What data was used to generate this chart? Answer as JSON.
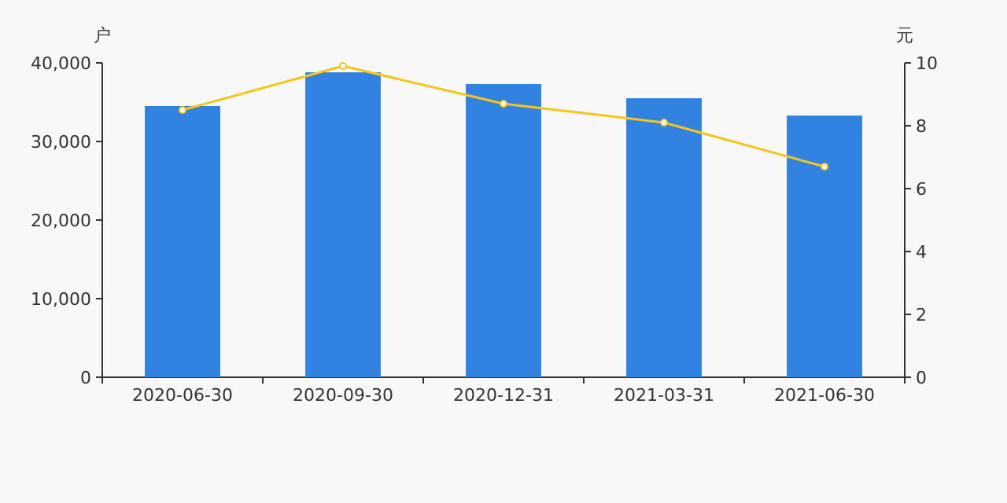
{
  "chart_data": {
    "type": "bar",
    "categories": [
      "2020-06-30",
      "2020-09-30",
      "2020-12-31",
      "2021-03-31",
      "2021-06-30"
    ],
    "ylabel": "户",
    "y2label": "元",
    "ylim": [
      0,
      40000
    ],
    "yticks": [
      0,
      {
        "value": 10000,
        "label": "10,000"
      },
      {
        "value": 20000,
        "label": "20,000"
      },
      {
        "value": 30000,
        "label": "30,000"
      },
      {
        "value": 40000,
        "label": "40,000"
      }
    ],
    "y2lim": [
      0,
      10
    ],
    "y2ticks": [
      0,
      2,
      4,
      6,
      8,
      10
    ],
    "marker": "circle",
    "series": [
      {
        "color": "#3282e2",
        "values": [
          34500,
          38800,
          37300,
          35500,
          33300
        ]
      },
      {
        "type": "line",
        "axis": "y2",
        "color": "#f5c518",
        "values": [
          8.5,
          9.9,
          8.7,
          8.1,
          6.7
        ]
      }
    ]
  }
}
